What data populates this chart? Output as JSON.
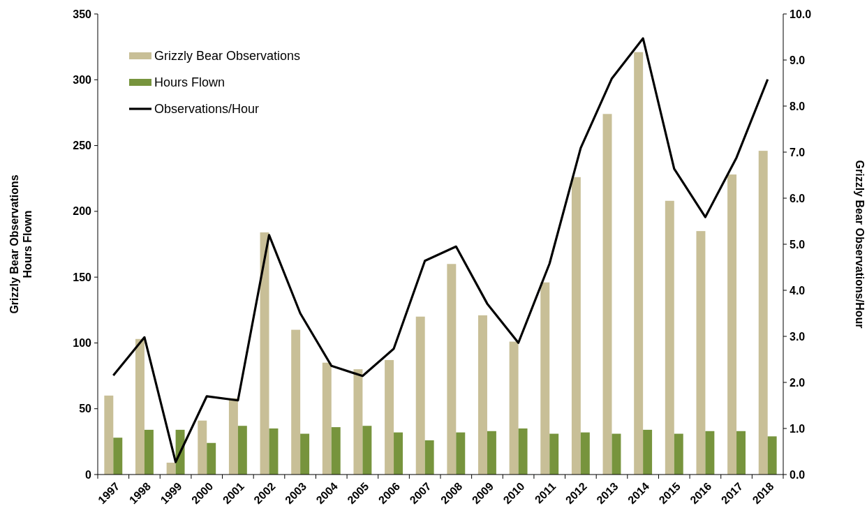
{
  "chart_data": {
    "type": "bar",
    "ylabel": "Grizzly Bear Observations\nHours Flown",
    "y2label": "Grizzly Bear Observations/Hour",
    "categories": [
      "1997",
      "1998",
      "1999",
      "2000",
      "2001",
      "2002",
      "2003",
      "2004",
      "2005",
      "2006",
      "2007",
      "2008",
      "2009",
      "2010",
      "2011",
      "2012",
      "2013",
      "2014",
      "2015",
      "2016",
      "2017",
      "2018"
    ],
    "series": [
      {
        "name": "Grizzly Bear Observations",
        "color": "#c8bf97",
        "values": [
          60,
          103,
          9,
          41,
          58,
          184,
          110,
          85,
          80,
          87,
          120,
          160,
          121,
          101,
          146,
          226,
          274,
          321,
          208,
          185,
          228,
          246
        ]
      },
      {
        "name": "Hours Flown",
        "color": "#77943d",
        "values": [
          28,
          34,
          34,
          24,
          37,
          35,
          31,
          36,
          37,
          32,
          26,
          32,
          33,
          35,
          31,
          32,
          31,
          34,
          31,
          33,
          33,
          29
        ]
      },
      {
        "name": "Observations/Hour",
        "color": "#000000",
        "type": "line",
        "axis": "y2",
        "values": [
          2.15,
          2.98,
          0.27,
          1.7,
          1.61,
          5.2,
          3.5,
          2.36,
          2.14,
          2.73,
          4.64,
          4.95,
          3.71,
          2.86,
          4.58,
          7.09,
          8.6,
          9.47,
          6.64,
          5.59,
          6.88,
          8.58
        ]
      }
    ],
    "ylim": [
      0,
      350
    ],
    "yticks": [
      0,
      50,
      100,
      150,
      200,
      250,
      300,
      350
    ],
    "y2lim": [
      0,
      10
    ],
    "y2ticks": [
      {
        "value": 0,
        "label": "0.0"
      },
      {
        "value": 1,
        "label": "1.0"
      },
      {
        "value": 2,
        "label": "2.0"
      },
      {
        "value": 3,
        "label": "3.0"
      },
      {
        "value": 4,
        "label": "4.0"
      },
      {
        "value": 5,
        "label": "5.0"
      },
      {
        "value": 6,
        "label": "6.0"
      },
      {
        "value": 7,
        "label": "7.0"
      },
      {
        "value": 8,
        "label": "8.0"
      },
      {
        "value": 9,
        "label": "9.0"
      },
      {
        "value": 10,
        "label": "10.0"
      }
    ],
    "legend": "top left",
    "marker": "none",
    "line_style": "solid"
  }
}
